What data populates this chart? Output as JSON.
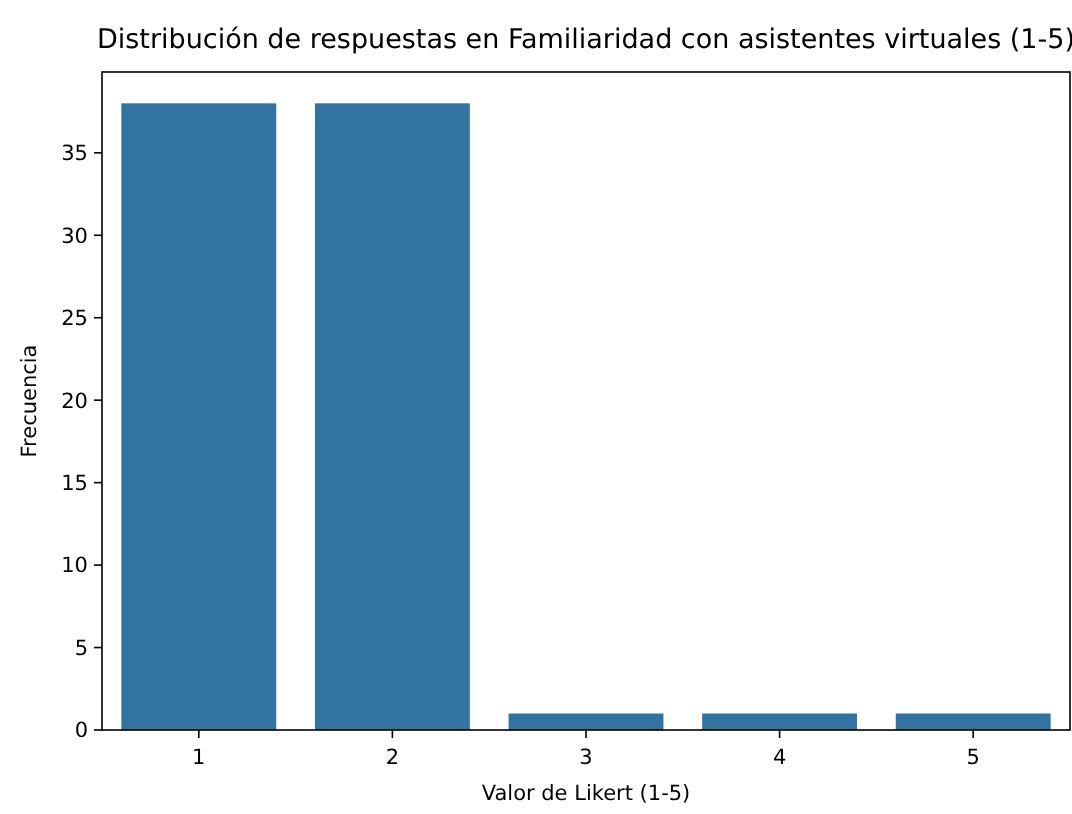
{
  "chart_data": {
    "type": "bar",
    "title": "Distribución de respuestas en Familiaridad con asistentes virtuales (1-5)",
    "xlabel": "Valor de Likert (1-5)",
    "ylabel": "Frecuencia",
    "categories": [
      "1",
      "2",
      "3",
      "4",
      "5"
    ],
    "values": [
      38,
      38,
      1,
      1,
      1
    ],
    "color": "#3274a1",
    "ylim": [
      0,
      39.9
    ],
    "yticks": [
      0,
      5,
      10,
      15,
      20,
      25,
      30,
      35
    ],
    "grid": false
  }
}
